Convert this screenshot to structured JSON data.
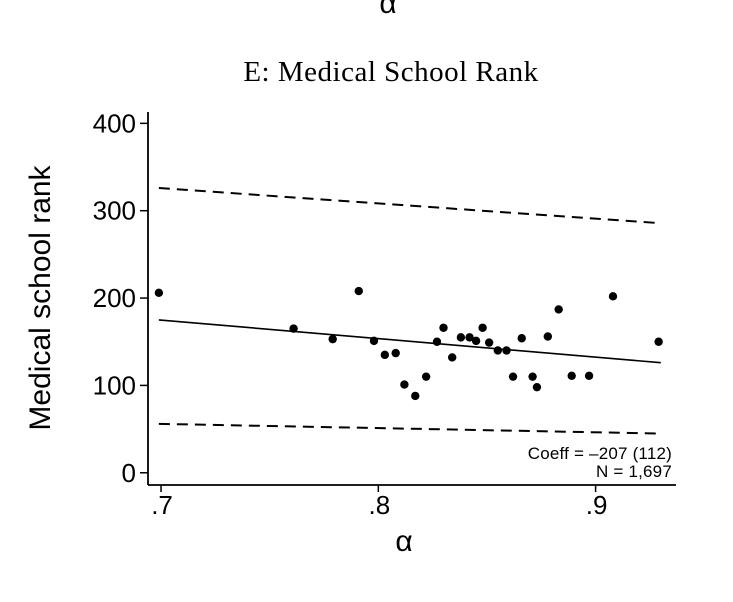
{
  "figure": {
    "background": "#ffffff",
    "top_axis_label": "α",
    "title": "E: Medical School Rank"
  },
  "chart_data": {
    "type": "scatter",
    "title": "E: Medical School Rank",
    "xlabel": "α",
    "ylabel": "Medical school rank",
    "xlim": [
      0.694,
      0.937
    ],
    "ylim": [
      -14,
      413
    ],
    "xticks": {
      "values": [
        0.7,
        0.8,
        0.9
      ],
      "labels": [
        ".7",
        ".8",
        ".9"
      ]
    },
    "yticks": {
      "values": [
        0,
        100,
        200,
        300,
        400
      ],
      "labels": [
        "0",
        "100",
        "200",
        "300",
        "400"
      ]
    },
    "grid": false,
    "legend": null,
    "marker_color": "#000000",
    "line_color": "#000000",
    "points": [
      [
        0.699,
        206
      ],
      [
        0.761,
        165
      ],
      [
        0.779,
        153
      ],
      [
        0.791,
        208
      ],
      [
        0.798,
        151
      ],
      [
        0.803,
        135
      ],
      [
        0.808,
        137
      ],
      [
        0.812,
        101
      ],
      [
        0.817,
        88
      ],
      [
        0.822,
        110
      ],
      [
        0.827,
        150
      ],
      [
        0.83,
        166
      ],
      [
        0.834,
        132
      ],
      [
        0.838,
        155
      ],
      [
        0.842,
        155
      ],
      [
        0.845,
        151
      ],
      [
        0.848,
        166
      ],
      [
        0.851,
        149
      ],
      [
        0.855,
        140
      ],
      [
        0.859,
        140
      ],
      [
        0.862,
        110
      ],
      [
        0.866,
        154
      ],
      [
        0.871,
        110
      ],
      [
        0.873,
        98
      ],
      [
        0.878,
        156
      ],
      [
        0.883,
        187
      ],
      [
        0.889,
        111
      ],
      [
        0.897,
        111
      ],
      [
        0.908,
        202
      ],
      [
        0.929,
        150
      ]
    ],
    "fit_line": {
      "x": [
        0.699,
        0.93
      ],
      "y": [
        175,
        126
      ],
      "style": "solid"
    },
    "ci_upper": {
      "x": [
        0.699,
        0.928
      ],
      "y": [
        326,
        286
      ],
      "style": "dashed"
    },
    "ci_lower": {
      "x": [
        0.699,
        0.928
      ],
      "y": [
        56,
        45
      ],
      "style": "dashed"
    },
    "annotation": {
      "lines": [
        "Coeff = –207 (112)",
        "N = 1,697"
      ],
      "position": "bottom-right"
    }
  }
}
